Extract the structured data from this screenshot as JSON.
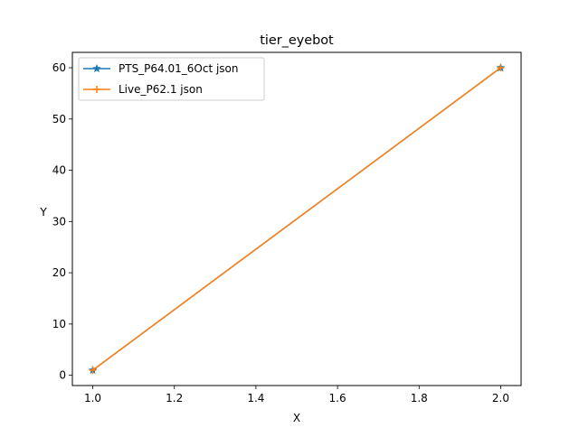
{
  "chart_data": {
    "type": "line",
    "title": "tier_eyebot",
    "xlabel": "X",
    "ylabel": "Y",
    "xlim": [
      0.95,
      2.05
    ],
    "ylim": [
      -2,
      63
    ],
    "xticks": [
      "1.0",
      "1.2",
      "1.4",
      "1.6",
      "1.8",
      "2.0"
    ],
    "yticks": [
      "0",
      "10",
      "20",
      "30",
      "40",
      "50",
      "60"
    ],
    "grid": false,
    "legend_position": "upper left",
    "series": [
      {
        "name": "PTS_P64.01_6Oct json",
        "x": [
          1.0,
          2.0
        ],
        "y": [
          1,
          60
        ],
        "color": "#1f77b4",
        "marker": "star"
      },
      {
        "name": "Live_P62.1 json",
        "x": [
          1.0,
          2.0
        ],
        "y": [
          1,
          60
        ],
        "color": "#ff7f0e",
        "marker": "plus"
      }
    ]
  }
}
